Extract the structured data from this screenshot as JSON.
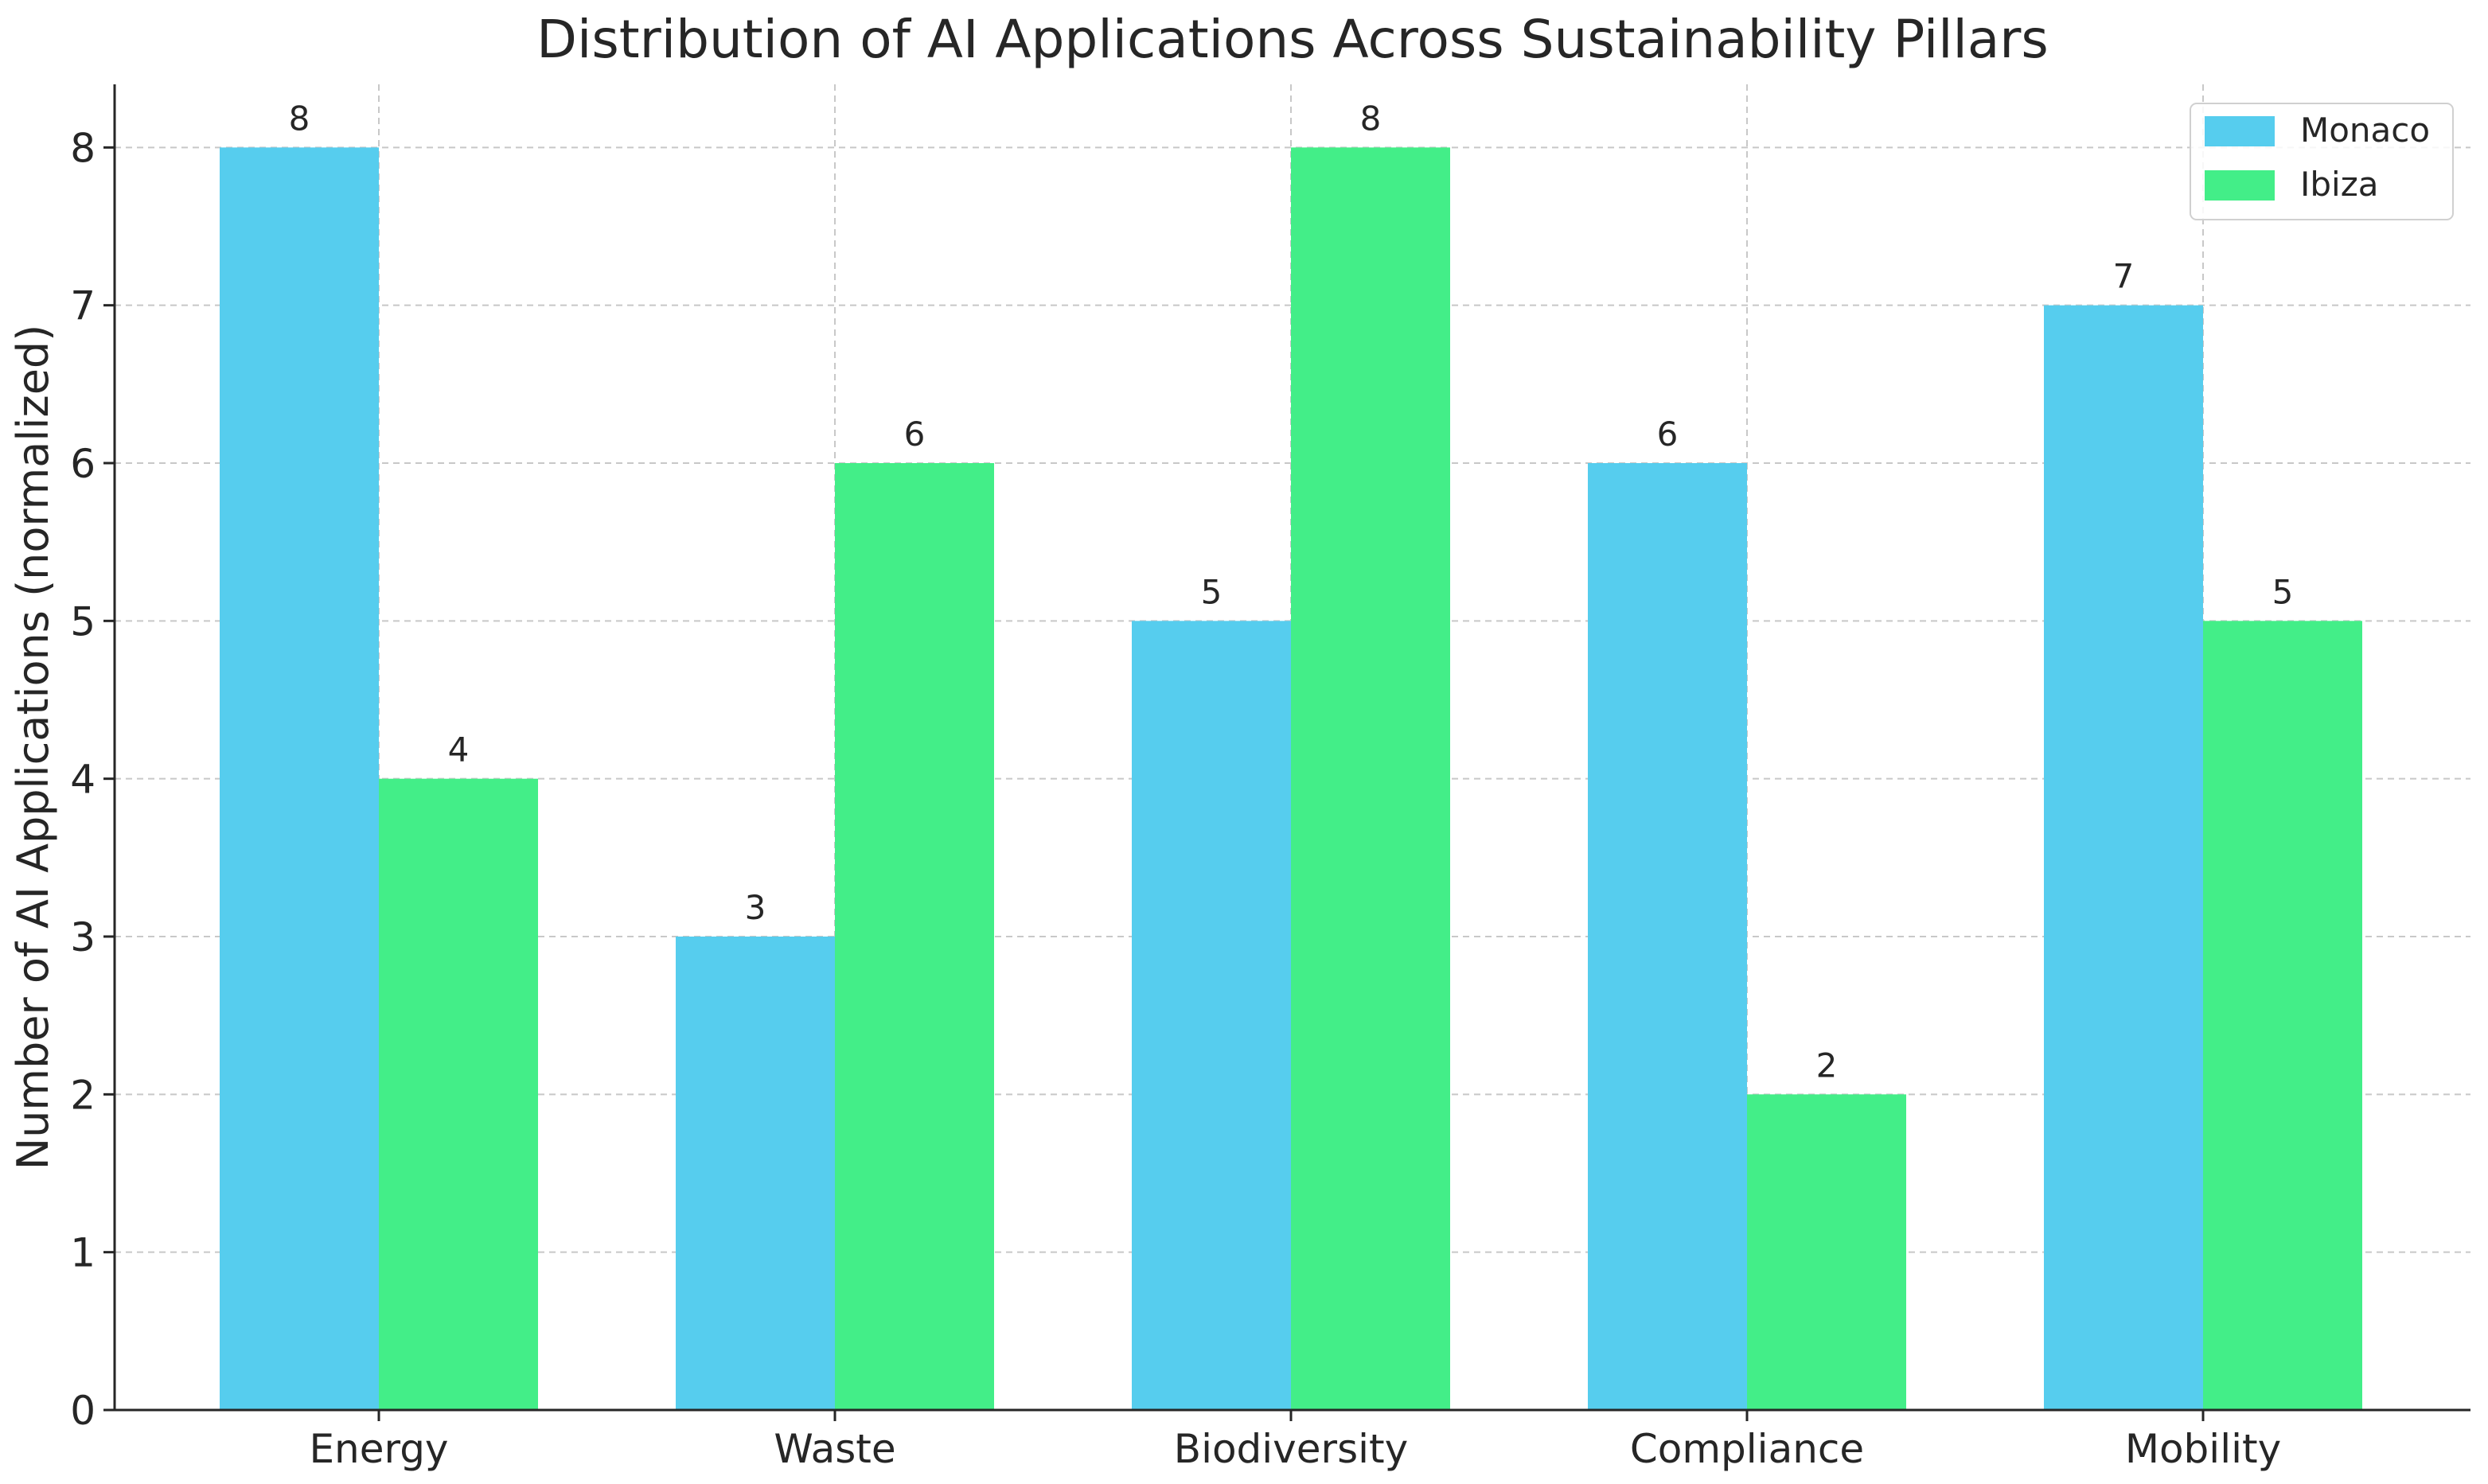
{
  "chart_data": {
    "type": "bar",
    "title": "Distribution of AI Applications Across Sustainability Pillars",
    "xlabel": "",
    "ylabel": "Number of AI Applications (normalized)",
    "categories": [
      "Energy",
      "Waste",
      "Biodiversity",
      "Compliance",
      "Mobility"
    ],
    "series": [
      {
        "name": "Monaco",
        "values": [
          8,
          3,
          5,
          6,
          7
        ],
        "color": "#56CDEE"
      },
      {
        "name": "Ibiza",
        "values": [
          4,
          6,
          8,
          2,
          5
        ],
        "color": "#43EE88"
      }
    ],
    "ylim": [
      0,
      8.4
    ],
    "yticks": [
      "0",
      "1",
      "2",
      "3",
      "4",
      "5",
      "6",
      "7",
      "8"
    ],
    "grid": true,
    "legend_position": "top-right",
    "data_labels": true
  }
}
